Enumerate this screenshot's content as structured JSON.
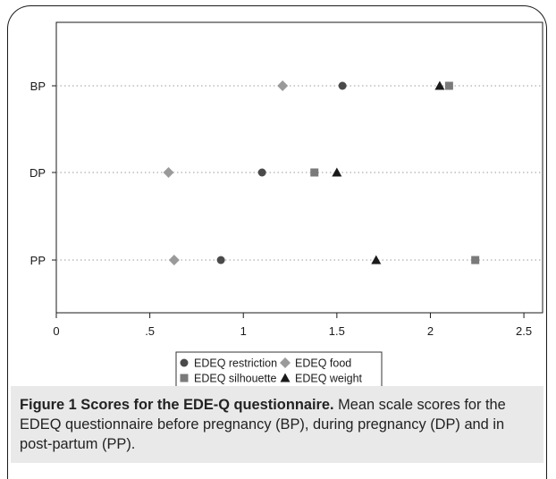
{
  "chart_data": {
    "type": "scatter",
    "categories": [
      "BP",
      "DP",
      "PP"
    ],
    "xlim": [
      0,
      2.6
    ],
    "x_ticks": [
      0,
      0.5,
      1,
      1.5,
      2,
      2.5
    ],
    "x_tick_labels": [
      "0",
      ".5",
      "1",
      "1.5",
      "2",
      "2.5"
    ],
    "grid": "dotted horizontal lines",
    "legend_position": "bottom",
    "series": [
      {
        "name": "EDEQ restriction",
        "marker": "circle",
        "color": "#4a4a4a",
        "values": [
          1.53,
          1.1,
          0.88
        ]
      },
      {
        "name": "EDEQ food",
        "marker": "diamond",
        "color": "#9a9a9a",
        "values": [
          1.21,
          0.6,
          0.63
        ]
      },
      {
        "name": "EDEQ silhouette",
        "marker": "square",
        "color": "#7a7a7a",
        "values": [
          2.1,
          1.38,
          2.24
        ]
      },
      {
        "name": "EDEQ weight",
        "marker": "triangle",
        "color": "#1a1a1a",
        "values": [
          2.05,
          1.5,
          1.71
        ]
      }
    ]
  },
  "caption": {
    "title": "Figure 1 Scores for the EDE-Q questionnaire.",
    "text": " Mean scale scores for the EDEQ questionnaire before pregnancy (BP), during pregnancy (DP) and in post-partum (PP)."
  }
}
